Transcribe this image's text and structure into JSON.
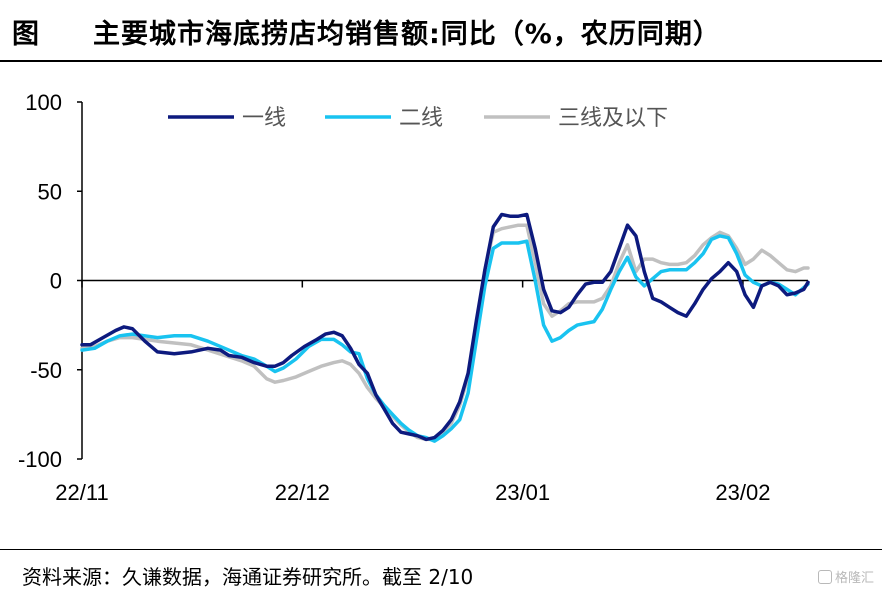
{
  "header": {
    "figure_label": "图",
    "title": "主要城市海底捞店均销售额:同比（%，农历同期）"
  },
  "footer": {
    "source": "资料来源：久谦数据，海通证券研究所。截至 2/10",
    "watermark": "格隆汇"
  },
  "colors": {
    "tier1": "#0d1a7e",
    "tier2": "#19c3f0",
    "tier3": "#c0c0c0"
  },
  "chart_data": {
    "type": "line",
    "title": "主要城市海底捞店均销售额:同比（%，农历同期）",
    "xlabel": "",
    "ylabel": "",
    "ylim": [
      -100,
      100
    ],
    "yticks": [
      100,
      50,
      0,
      -50,
      -100
    ],
    "xtick_labels": [
      "22/11",
      "22/12",
      "23/01",
      "23/02"
    ],
    "legend_position": "top",
    "grid": false,
    "series": [
      {
        "name": "一线",
        "color": "#0d1a7e",
        "points": [
          [
            0,
            -36
          ],
          [
            2,
            -36
          ],
          [
            5,
            -32
          ],
          [
            8,
            -28
          ],
          [
            10,
            -26
          ],
          [
            12,
            -27
          ],
          [
            15,
            -34
          ],
          [
            18,
            -40
          ],
          [
            22,
            -41
          ],
          [
            26,
            -40
          ],
          [
            30,
            -38
          ],
          [
            33,
            -39
          ],
          [
            35,
            -42
          ],
          [
            38,
            -43
          ],
          [
            41,
            -46
          ],
          [
            44,
            -48
          ],
          [
            46,
            -48
          ],
          [
            48,
            -46
          ],
          [
            50,
            -42
          ],
          [
            53,
            -37
          ],
          [
            56,
            -33
          ],
          [
            58,
            -30
          ],
          [
            60,
            -29
          ],
          [
            62,
            -31
          ],
          [
            64,
            -38
          ],
          [
            66,
            -47
          ],
          [
            68,
            -52
          ],
          [
            70,
            -64
          ],
          [
            72,
            -72
          ],
          [
            74,
            -80
          ],
          [
            76,
            -85
          ],
          [
            78,
            -86
          ],
          [
            80,
            -87
          ],
          [
            82,
            -89
          ],
          [
            84,
            -88
          ],
          [
            86,
            -84
          ],
          [
            88,
            -78
          ],
          [
            90,
            -68
          ],
          [
            92,
            -52
          ],
          [
            94,
            -22
          ],
          [
            96,
            6
          ],
          [
            98,
            30
          ],
          [
            100,
            37
          ],
          [
            102,
            36
          ],
          [
            104,
            36
          ],
          [
            106,
            37
          ],
          [
            108,
            18
          ],
          [
            110,
            -5
          ],
          [
            112,
            -17
          ],
          [
            114,
            -18
          ],
          [
            116,
            -15
          ],
          [
            118,
            -8
          ],
          [
            120,
            -2
          ],
          [
            122,
            -1
          ],
          [
            124,
            -1
          ],
          [
            126,
            5
          ],
          [
            128,
            18
          ],
          [
            130,
            31
          ],
          [
            132,
            25
          ],
          [
            134,
            5
          ],
          [
            136,
            -10
          ],
          [
            138,
            -12
          ],
          [
            140,
            -15
          ],
          [
            142,
            -18
          ],
          [
            144,
            -20
          ],
          [
            146,
            -13
          ],
          [
            148,
            -5
          ],
          [
            150,
            1
          ],
          [
            152,
            5
          ],
          [
            154,
            10
          ],
          [
            156,
            5
          ],
          [
            158,
            -8
          ],
          [
            160,
            -15
          ],
          [
            162,
            -3
          ],
          [
            164,
            -1
          ],
          [
            166,
            -3
          ],
          [
            168,
            -8
          ],
          [
            170,
            -7
          ],
          [
            172,
            -5
          ],
          [
            173,
            -1
          ]
        ]
      },
      {
        "name": "二线",
        "color": "#19c3f0",
        "points": [
          [
            0,
            -39
          ],
          [
            3,
            -38
          ],
          [
            6,
            -34
          ],
          [
            9,
            -31
          ],
          [
            12,
            -30
          ],
          [
            15,
            -31
          ],
          [
            18,
            -32
          ],
          [
            22,
            -31
          ],
          [
            26,
            -31
          ],
          [
            30,
            -34
          ],
          [
            34,
            -38
          ],
          [
            38,
            -42
          ],
          [
            41,
            -44
          ],
          [
            44,
            -48
          ],
          [
            46,
            -51
          ],
          [
            48,
            -49
          ],
          [
            51,
            -44
          ],
          [
            54,
            -37
          ],
          [
            57,
            -33
          ],
          [
            60,
            -33
          ],
          [
            62,
            -36
          ],
          [
            64,
            -40
          ],
          [
            66,
            -41
          ],
          [
            68,
            -55
          ],
          [
            70,
            -64
          ],
          [
            72,
            -70
          ],
          [
            74,
            -75
          ],
          [
            76,
            -80
          ],
          [
            78,
            -84
          ],
          [
            80,
            -87
          ],
          [
            82,
            -88
          ],
          [
            84,
            -90
          ],
          [
            86,
            -87
          ],
          [
            88,
            -83
          ],
          [
            90,
            -78
          ],
          [
            92,
            -63
          ],
          [
            94,
            -33
          ],
          [
            96,
            -3
          ],
          [
            98,
            18
          ],
          [
            100,
            21
          ],
          [
            102,
            21
          ],
          [
            104,
            21
          ],
          [
            106,
            22
          ],
          [
            108,
            0
          ],
          [
            110,
            -25
          ],
          [
            112,
            -34
          ],
          [
            114,
            -32
          ],
          [
            116,
            -28
          ],
          [
            118,
            -25
          ],
          [
            120,
            -24
          ],
          [
            122,
            -23
          ],
          [
            124,
            -16
          ],
          [
            126,
            -5
          ],
          [
            128,
            5
          ],
          [
            130,
            13
          ],
          [
            132,
            2
          ],
          [
            134,
            -3
          ],
          [
            136,
            1
          ],
          [
            138,
            5
          ],
          [
            140,
            6
          ],
          [
            142,
            6
          ],
          [
            144,
            6
          ],
          [
            146,
            10
          ],
          [
            148,
            15
          ],
          [
            150,
            23
          ],
          [
            152,
            25
          ],
          [
            154,
            24
          ],
          [
            156,
            15
          ],
          [
            158,
            3
          ],
          [
            160,
            -1
          ],
          [
            162,
            -3
          ],
          [
            164,
            -1
          ],
          [
            166,
            -2
          ],
          [
            168,
            -5
          ],
          [
            170,
            -8
          ],
          [
            172,
            -4
          ],
          [
            173,
            -2
          ]
        ]
      },
      {
        "name": "三线及以下",
        "color": "#c0c0c0",
        "points": [
          [
            0,
            -38
          ],
          [
            3,
            -37
          ],
          [
            6,
            -34
          ],
          [
            9,
            -32
          ],
          [
            12,
            -32
          ],
          [
            15,
            -33
          ],
          [
            18,
            -34
          ],
          [
            22,
            -35
          ],
          [
            26,
            -36
          ],
          [
            30,
            -39
          ],
          [
            34,
            -42
          ],
          [
            38,
            -45
          ],
          [
            41,
            -48
          ],
          [
            44,
            -55
          ],
          [
            46,
            -57
          ],
          [
            48,
            -56
          ],
          [
            51,
            -54
          ],
          [
            54,
            -51
          ],
          [
            57,
            -48
          ],
          [
            60,
            -46
          ],
          [
            62,
            -45
          ],
          [
            64,
            -47
          ],
          [
            66,
            -52
          ],
          [
            68,
            -60
          ],
          [
            70,
            -66
          ],
          [
            72,
            -71
          ],
          [
            74,
            -76
          ],
          [
            76,
            -81
          ],
          [
            78,
            -85
          ],
          [
            80,
            -88
          ],
          [
            82,
            -89
          ],
          [
            84,
            -89
          ],
          [
            86,
            -85
          ],
          [
            88,
            -80
          ],
          [
            90,
            -70
          ],
          [
            92,
            -54
          ],
          [
            94,
            -26
          ],
          [
            96,
            6
          ],
          [
            98,
            27
          ],
          [
            100,
            29
          ],
          [
            102,
            30
          ],
          [
            104,
            31
          ],
          [
            106,
            31
          ],
          [
            108,
            10
          ],
          [
            110,
            -13
          ],
          [
            112,
            -20
          ],
          [
            114,
            -17
          ],
          [
            116,
            -13
          ],
          [
            118,
            -12
          ],
          [
            120,
            -12
          ],
          [
            122,
            -12
          ],
          [
            124,
            -10
          ],
          [
            126,
            -3
          ],
          [
            128,
            10
          ],
          [
            130,
            20
          ],
          [
            132,
            5
          ],
          [
            134,
            12
          ],
          [
            136,
            12
          ],
          [
            138,
            10
          ],
          [
            140,
            9
          ],
          [
            142,
            9
          ],
          [
            144,
            10
          ],
          [
            146,
            14
          ],
          [
            148,
            20
          ],
          [
            150,
            24
          ],
          [
            152,
            27
          ],
          [
            154,
            25
          ],
          [
            156,
            18
          ],
          [
            158,
            9
          ],
          [
            160,
            12
          ],
          [
            162,
            17
          ],
          [
            164,
            14
          ],
          [
            166,
            10
          ],
          [
            168,
            6
          ],
          [
            170,
            5
          ],
          [
            172,
            7
          ],
          [
            173,
            7
          ]
        ]
      }
    ]
  }
}
